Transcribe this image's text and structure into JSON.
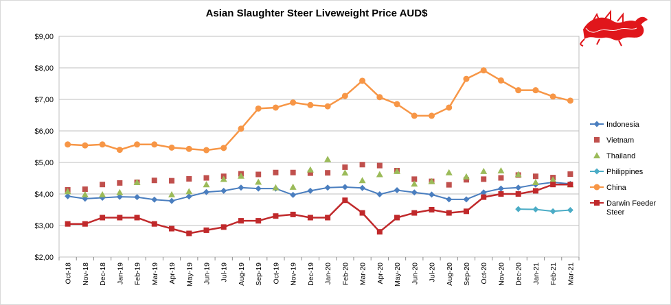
{
  "chart_data": {
    "type": "line",
    "title": "Asian Slaughter Steer Liveweight Price AUD$",
    "xlabel": "",
    "ylabel": "",
    "ylim": [
      2,
      9
    ],
    "y_ticks": [
      "$2,00",
      "$3,00",
      "$4,00",
      "$5,00",
      "$6,00",
      "$7,00",
      "$8,00",
      "$9,00"
    ],
    "grid": true,
    "legend_position": "right",
    "categories": [
      "Oct-18",
      "Nov-18",
      "Dec-18",
      "Jan-19",
      "Feb-19",
      "Mar-19",
      "Apr-19",
      "May-19",
      "Jun-19",
      "Jul-19",
      "Aug-19",
      "Sep-19",
      "Oct-19",
      "Nov-19",
      "Dec-19",
      "Jan-20",
      "Feb-20",
      "Mar-20",
      "Apr-20",
      "May-20",
      "Jun-20",
      "Jul-20",
      "Aug-20",
      "Sep-20",
      "Oct-20",
      "Nov-20",
      "Dec-20",
      "Jan-21",
      "Feb-21",
      "Mar-21"
    ],
    "series": [
      {
        "name": "Indonesia",
        "style": "line-diamond",
        "color": "#4a7ebf",
        "values": [
          3.93,
          3.85,
          3.88,
          3.91,
          3.9,
          3.82,
          3.78,
          3.92,
          4.06,
          4.1,
          4.2,
          4.17,
          4.17,
          3.97,
          4.1,
          4.2,
          4.22,
          4.19,
          3.99,
          4.12,
          4.05,
          3.98,
          3.83,
          3.83,
          4.05,
          4.17,
          4.2,
          4.3,
          4.37,
          4.32
        ]
      },
      {
        "name": "Vietnam",
        "style": "marker-square",
        "color": "#c0504d",
        "values": [
          4.13,
          4.15,
          4.3,
          4.35,
          4.37,
          4.43,
          4.42,
          4.48,
          4.51,
          4.56,
          4.64,
          4.62,
          4.68,
          4.68,
          4.66,
          4.67,
          4.85,
          4.93,
          4.9,
          4.74,
          4.47,
          4.4,
          4.29,
          4.45,
          4.47,
          4.51,
          4.6,
          4.56,
          4.52,
          4.63
        ]
      },
      {
        "name": "Thailand",
        "style": "marker-triangle",
        "color": "#9bbb59",
        "values": [
          4.08,
          3.98,
          3.98,
          4.05,
          4.37,
          null,
          3.98,
          4.08,
          4.3,
          4.47,
          4.57,
          4.38,
          4.2,
          4.22,
          4.77,
          5.1,
          4.67,
          4.43,
          4.62,
          4.72,
          4.32,
          4.4,
          4.68,
          4.55,
          4.72,
          4.74,
          4.62,
          4.37,
          4.45,
          4.3
        ]
      },
      {
        "name": "Philippines",
        "style": "line-diamond",
        "color": "#4bacc6",
        "values": [
          null,
          null,
          null,
          null,
          null,
          null,
          null,
          null,
          null,
          null,
          null,
          null,
          null,
          null,
          null,
          null,
          null,
          null,
          null,
          null,
          null,
          null,
          null,
          null,
          null,
          null,
          3.52,
          3.51,
          3.45,
          3.49
        ]
      },
      {
        "name": "China",
        "style": "line-circle",
        "color": "#f79646",
        "values": [
          5.57,
          5.54,
          5.57,
          5.4,
          5.57,
          5.57,
          5.47,
          5.43,
          5.39,
          5.46,
          6.07,
          6.71,
          6.74,
          6.9,
          6.82,
          6.78,
          7.11,
          7.59,
          7.07,
          6.85,
          6.48,
          6.48,
          6.74,
          7.65,
          7.92,
          7.6,
          7.29,
          7.29,
          7.09,
          6.96
        ]
      },
      {
        "name": "Darwin Feeder Steer",
        "style": "line-square",
        "color": "#c0292b",
        "values": [
          3.05,
          3.05,
          3.25,
          3.25,
          3.25,
          3.05,
          2.9,
          2.75,
          2.85,
          2.95,
          3.15,
          3.15,
          3.3,
          3.35,
          3.25,
          3.25,
          3.8,
          3.4,
          2.8,
          3.25,
          3.4,
          3.5,
          3.4,
          3.45,
          3.9,
          4.0,
          4.0,
          4.1,
          4.3,
          4.3
        ]
      }
    ]
  },
  "logo": {
    "description": "red chinese dragon",
    "color": "#e0161b"
  }
}
